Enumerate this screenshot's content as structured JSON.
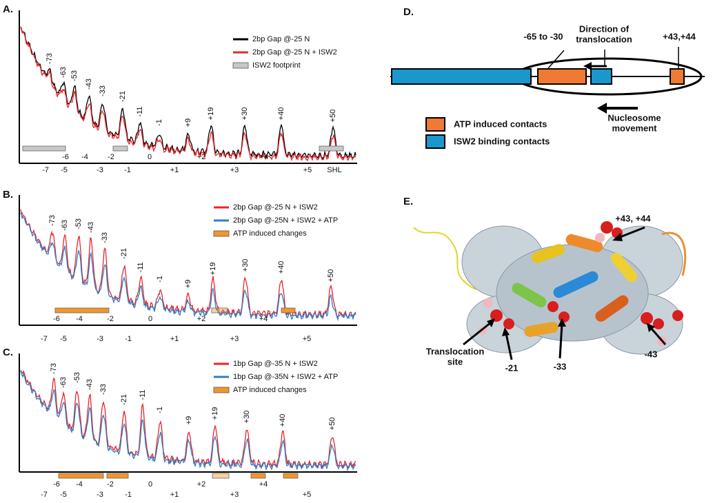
{
  "panels": [
    {
      "label": "A.",
      "legend": [
        {
          "name": "2bp Gap @-25 N",
          "color": "#000000"
        },
        {
          "name": "2bp Gap @-25 N + ISW2",
          "color": "#e8252b"
        },
        {
          "name": "ISW2 footprint",
          "color": "#c8c8c8"
        }
      ],
      "peaks": [
        "-73",
        "-63",
        "-53",
        "-43",
        "-33",
        "-21",
        "-11",
        "-1",
        "+9",
        "+19",
        "+30",
        "+40",
        "+50"
      ],
      "shl": [
        "-7",
        "-6",
        "-5",
        "-4",
        "-3",
        "-2",
        "-1",
        "0",
        "+1",
        "+2",
        "+3",
        "+4",
        "+5"
      ],
      "axis_label": "SHL"
    },
    {
      "label": "B.",
      "legend": [
        {
          "name": "2bp Gap @-25 N + ISW2",
          "color": "#e8252b"
        },
        {
          "name": "2bp Gap @-25N + ISW2 + ATP",
          "color": "#2a7fc8"
        },
        {
          "name": "ATP induced changes",
          "color": "#f0962e"
        }
      ],
      "peaks": [
        "-73",
        "-63",
        "-53",
        "-43",
        "-33",
        "-21",
        "-11",
        "-1",
        "+9",
        "+19",
        "+30",
        "+40",
        "+50"
      ],
      "shl": [
        "-7",
        "-6",
        "-5",
        "-4",
        "-3",
        "-2",
        "-1",
        "0",
        "+1",
        "+2",
        "+3",
        "+4",
        "+5"
      ]
    },
    {
      "label": "C.",
      "legend": [
        {
          "name": "1bp Gap @-35 N + ISW2",
          "color": "#e8252b"
        },
        {
          "name": "1bp Gap @-35N + ISW2 + ATP",
          "color": "#2a7fc8"
        },
        {
          "name": "ATP induced changes",
          "color": "#f0962e"
        }
      ],
      "peaks": [
        "-73",
        "-63",
        "-53",
        "-43",
        "-33",
        "-21",
        "-11",
        "-1",
        "+9",
        "+19",
        "+30",
        "+40",
        "+50"
      ],
      "shl": [
        "-7",
        "-6",
        "-5",
        "-4",
        "-3",
        "-2",
        "-1",
        "0",
        "+1",
        "+2",
        "+3",
        "+4",
        "+5"
      ]
    }
  ],
  "diagram": {
    "label": "D.",
    "region_label": "-65 to -30",
    "direction": [
      "Direction of",
      "translocation"
    ],
    "site_label": "+43,+44",
    "legend": [
      {
        "name": "ATP induced contacts",
        "color": "#ee7a33"
      },
      {
        "name": "ISW2 binding contacts",
        "color": "#1a98cc"
      }
    ],
    "movement": [
      "Nucleosome",
      "movement"
    ]
  },
  "structure": {
    "label": "E.",
    "site_label": "+43, +44",
    "translocation": [
      "Translocation",
      "site"
    ],
    "markers": [
      "-21",
      "-33",
      "-43"
    ]
  }
}
